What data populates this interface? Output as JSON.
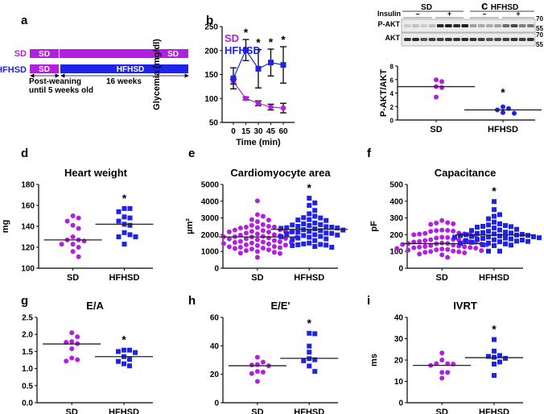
{
  "colors": {
    "sd": "#b21fe0",
    "hfhsd": "#1f23e6",
    "axis": "#000000",
    "blot_bg": "#e9e9e9"
  },
  "panel_a": {
    "label": "a",
    "rows": [
      {
        "group": "SD",
        "seg1": "SD",
        "seg2": "SD"
      },
      {
        "group": "HFHSD",
        "seg1": "SD",
        "seg2": "HFHSD"
      }
    ],
    "period1": [
      "Post-weaning",
      "until 5 weeks old"
    ],
    "period2": "16 weeks"
  },
  "panel_c_blot": {
    "label": "c",
    "groups": [
      "SD",
      "HFHSD"
    ],
    "insulin_label": "Insulin",
    "insulin_states": [
      "–",
      "+",
      "–",
      "+"
    ],
    "rows": [
      "P-AKT",
      "AKT"
    ],
    "markers": [
      "70",
      "55",
      "70",
      "55"
    ],
    "pakt_intensity": [
      0.15,
      0.2,
      0.15,
      0.2,
      0.9,
      0.95,
      0.9,
      0.95,
      0.35,
      0.3,
      0.3,
      0.35,
      0.6,
      0.75,
      0.5,
      0.55
    ],
    "akt_intensity": [
      0.85,
      0.9,
      0.7,
      0.8,
      0.8,
      0.85,
      0.85,
      0.9,
      0.85,
      0.8,
      0.7,
      0.75,
      0.8,
      0.85,
      0.8,
      0.85
    ]
  },
  "chart_data": [
    {
      "id": "b",
      "label": "b",
      "type": "line",
      "title": "",
      "xlabel": "Time (min)",
      "ylabel": "Glycemia (mg/dl)",
      "x": [
        0,
        15,
        30,
        45,
        60
      ],
      "xticks": [
        "0",
        "15",
        "30",
        "45",
        "60"
      ],
      "ylim": [
        50,
        250
      ],
      "yticks": [
        50,
        100,
        150,
        200,
        250
      ],
      "legend": [
        "SD",
        "HFHSD"
      ],
      "legend_position": "top-left",
      "series": [
        {
          "name": "SD",
          "values": [
            135,
            100,
            90,
            82,
            80
          ],
          "err": [
            5,
            3,
            5,
            6,
            10
          ],
          "marker": "circle"
        },
        {
          "name": "HFHSD",
          "values": [
            142,
            201,
            162,
            175,
            170
          ],
          "err": [
            22,
            22,
            40,
            28,
            38
          ],
          "marker": "square"
        }
      ],
      "significance": [
        false,
        true,
        true,
        true,
        true
      ]
    },
    {
      "id": "c",
      "label": "",
      "type": "scatter",
      "title": "",
      "xlabel": "",
      "ylabel": "P-AKT/AKT",
      "categories": [
        "SD",
        "HFHSD"
      ],
      "ylim": [
        0,
        8
      ],
      "yticks": [
        0,
        2,
        4,
        6,
        8
      ],
      "series": [
        {
          "name": "SD",
          "values": [
            5.95,
            5.7,
            4.95,
            4.8,
            3.4
          ],
          "median": 4.95,
          "marker": "circle"
        },
        {
          "name": "HFHSD",
          "values": [
            1.95,
            1.7,
            1.5,
            1.1,
            1.0
          ],
          "median": 1.5,
          "marker": "circle"
        }
      ],
      "significant": true
    },
    {
      "id": "d",
      "label": "d",
      "type": "scatter",
      "title": "Heart weight",
      "xlabel": "",
      "ylabel": "mg",
      "categories": [
        "SD",
        "HFHSD"
      ],
      "ylim": [
        100,
        180
      ],
      "yticks": [
        100,
        120,
        140,
        160,
        180
      ],
      "series": [
        {
          "name": "SD",
          "values": [
            150,
            148,
            145,
            141,
            138,
            130,
            127,
            127,
            126,
            123,
            123,
            120,
            116,
            111
          ],
          "median": 127,
          "marker": "circle"
        },
        {
          "name": "HFHSD",
          "values": [
            157,
            157,
            154,
            149,
            148,
            145,
            142,
            141,
            134,
            132,
            130,
            130,
            123
          ],
          "median": 142,
          "marker": "square"
        }
      ],
      "significant": true
    },
    {
      "id": "e",
      "label": "e",
      "type": "scatter",
      "title": "Cardiomyocyte area",
      "xlabel": "",
      "ylabel": "µm²",
      "categories": [
        "SD",
        "HFHSD"
      ],
      "ylim": [
        0,
        5000
      ],
      "yticks": [
        0,
        1000,
        2000,
        3000,
        4000,
        5000
      ],
      "series": [
        {
          "name": "SD",
          "values": [
            4020,
            3200,
            3100,
            2900,
            2870,
            2780,
            2600,
            2560,
            2500,
            2450,
            2460,
            2420,
            2400,
            2300,
            2280,
            2250,
            2200,
            2180,
            2170,
            2160,
            2150,
            2100,
            2050,
            2000,
            1980,
            1950,
            1900,
            1880,
            1870,
            1860,
            1850,
            1800,
            1780,
            1760,
            1750,
            1700,
            1650,
            1600,
            1580,
            1560,
            1550,
            1540,
            1500,
            1480,
            1450,
            1400,
            1380,
            1350,
            1300,
            1280,
            1250,
            1230,
            1200,
            1180,
            1150,
            1100,
            1050,
            1000,
            950,
            900,
            880,
            650
          ],
          "median": 1870,
          "marker": "circle"
        },
        {
          "name": "HFHSD",
          "values": [
            4180,
            3900,
            3750,
            3450,
            3250,
            3100,
            3020,
            3000,
            2900,
            2880,
            2850,
            2700,
            2650,
            2600,
            2580,
            2550,
            2500,
            2480,
            2450,
            2420,
            2400,
            2380,
            2350,
            2300,
            2280,
            2250,
            2200,
            2180,
            2150,
            2100,
            2080,
            2050,
            2000,
            1980,
            1950,
            1900,
            1880,
            1850,
            1800,
            1750,
            1700,
            1650,
            1500,
            1450,
            1420,
            1400,
            1380,
            1350,
            1300,
            1250
          ],
          "median": 2320,
          "marker": "square"
        }
      ],
      "significant": true
    },
    {
      "id": "f",
      "label": "f",
      "type": "scatter",
      "title": "Capacitance",
      "xlabel": "",
      "ylabel": "pF",
      "categories": [
        "SD",
        "HFHSD"
      ],
      "ylim": [
        0,
        500
      ],
      "yticks": [
        0,
        100,
        200,
        300,
        400,
        500
      ],
      "series": [
        {
          "name": "SD",
          "values": [
            285,
            272,
            270,
            265,
            262,
            228,
            226,
            225,
            222,
            220,
            210,
            208,
            205,
            204,
            202,
            200,
            195,
            185,
            183,
            180,
            172,
            170,
            168,
            165,
            162,
            160,
            158,
            156,
            155,
            150,
            148,
            147,
            146,
            145,
            142,
            140,
            138,
            135,
            132,
            130,
            128,
            126,
            124,
            122,
            120,
            118,
            115,
            112,
            110,
            108,
            105,
            102,
            100,
            98,
            95,
            92,
            85,
            80,
            65
          ],
          "median": 147,
          "marker": "circle"
        },
        {
          "name": "HFHSD",
          "values": [
            398,
            350,
            320,
            310,
            295,
            275,
            265,
            258,
            255,
            250,
            248,
            245,
            240,
            232,
            228,
            225,
            220,
            215,
            212,
            210,
            208,
            205,
            202,
            200,
            198,
            196,
            195,
            192,
            190,
            188,
            186,
            185,
            182,
            180,
            178,
            175,
            172,
            170,
            168,
            165,
            162,
            160,
            158,
            155,
            150,
            148,
            145,
            140,
            138,
            135,
            102,
            102
          ],
          "median": 198,
          "marker": "square"
        }
      ],
      "significant": true
    },
    {
      "id": "g",
      "label": "g",
      "type": "scatter",
      "title": "E/A",
      "xlabel": "",
      "ylabel": "",
      "categories": [
        "SD",
        "HFHSD"
      ],
      "ylim": [
        0,
        2.5
      ],
      "yticks": [
        "0.0",
        "0.5",
        "1.0",
        "1.5",
        "2.0",
        "2.5"
      ],
      "series": [
        {
          "name": "SD",
          "values": [
            2.05,
            1.93,
            1.79,
            1.77,
            1.73,
            1.58,
            1.31,
            1.26,
            1.22
          ],
          "median": 1.72,
          "marker": "circle"
        },
        {
          "name": "HFHSD",
          "values": [
            1.54,
            1.54,
            1.5,
            1.47,
            1.35,
            1.27,
            1.21,
            1.14,
            1.08
          ],
          "median": 1.35,
          "marker": "square"
        }
      ],
      "significant": true
    },
    {
      "id": "h",
      "label": "h",
      "type": "scatter",
      "title": "E/E'",
      "xlabel": "",
      "ylabel": "",
      "categories": [
        "SD",
        "HFHSD"
      ],
      "ylim": [
        0,
        60
      ],
      "yticks": [
        0,
        20,
        40,
        60
      ],
      "series": [
        {
          "name": "SD",
          "values": [
            32,
            28.5,
            26.8,
            26.5,
            26.0,
            22,
            21.5,
            20.5,
            15
          ],
          "median": 26,
          "marker": "circle"
        },
        {
          "name": "HFHSD",
          "values": [
            48.8,
            48.5,
            39.8,
            35.5,
            31.0,
            30.2,
            29.5,
            25.8,
            22
          ],
          "median": 31.2,
          "marker": "square"
        }
      ],
      "significant": true
    },
    {
      "id": "i",
      "label": "i",
      "type": "scatter",
      "title": "IVRT",
      "xlabel": "",
      "ylabel": "ms",
      "categories": [
        "SD",
        "HFHSD"
      ],
      "ylim": [
        0,
        40
      ],
      "yticks": [
        0,
        10,
        20,
        30,
        40
      ],
      "series": [
        {
          "name": "SD",
          "values": [
            23.3,
            20.0,
            18.3,
            18.3,
            18.1,
            17.5,
            14.2,
            14.2,
            11.5
          ],
          "median": 17.5,
          "marker": "circle"
        },
        {
          "name": "HFHSD",
          "values": [
            29.6,
            24.2,
            22.1,
            21.7,
            21.3,
            20.8,
            19.1,
            18.1,
            12.8
          ],
          "median": 21.1,
          "marker": "square"
        }
      ],
      "significant": true
    }
  ]
}
